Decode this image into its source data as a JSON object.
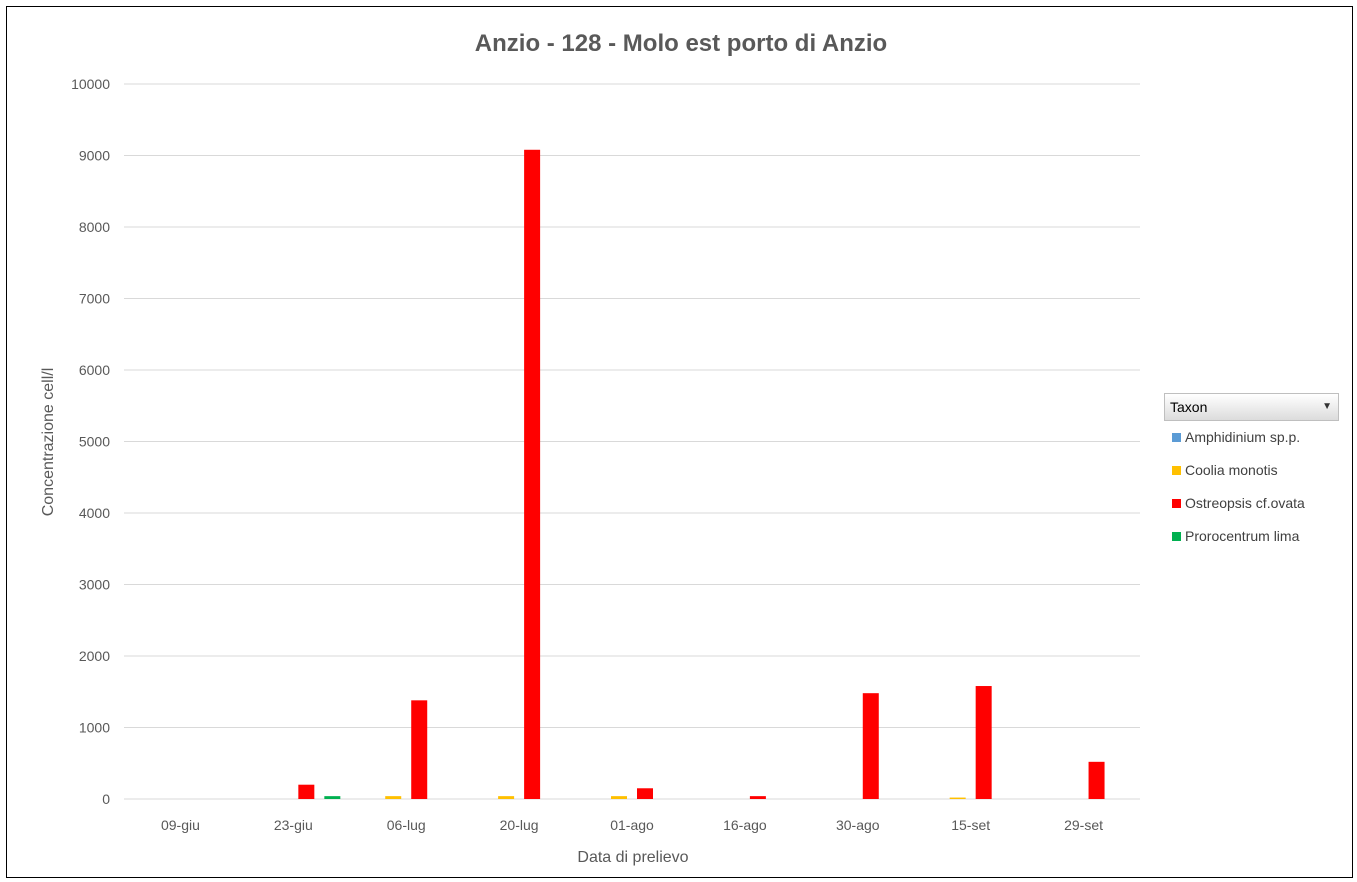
{
  "chart_data": {
    "type": "bar",
    "title": "Anzio - 128 - Molo est porto di Anzio",
    "xlabel": "Data di prelievo",
    "ylabel": "Concentrazione cell/l",
    "ylim": [
      0,
      10000
    ],
    "yticks": [
      0,
      1000,
      2000,
      3000,
      4000,
      5000,
      6000,
      7000,
      8000,
      9000,
      10000
    ],
    "categories": [
      "09-giu",
      "23-giu",
      "06-lug",
      "20-lug",
      "01-ago",
      "16-ago",
      "30-ago",
      "15-set",
      "29-set"
    ],
    "grid": true,
    "legend_position": "right",
    "legend_title": "Taxon",
    "series": [
      {
        "name": "Amphidinium sp.p.",
        "color": "#5b9bd5",
        "values": [
          0,
          0,
          0,
          0,
          0,
          0,
          0,
          0,
          0
        ]
      },
      {
        "name": "Coolia monotis",
        "color": "#ffc000",
        "values": [
          0,
          0,
          40,
          40,
          40,
          0,
          0,
          20,
          0
        ]
      },
      {
        "name": "Ostreopsis cf.ovata",
        "color": "#ff0000",
        "values": [
          0,
          200,
          1380,
          9080,
          150,
          40,
          1480,
          1580,
          520
        ]
      },
      {
        "name": "Prorocentrum lima",
        "color": "#00b050",
        "values": [
          0,
          40,
          0,
          0,
          0,
          0,
          0,
          0,
          0
        ]
      }
    ]
  }
}
